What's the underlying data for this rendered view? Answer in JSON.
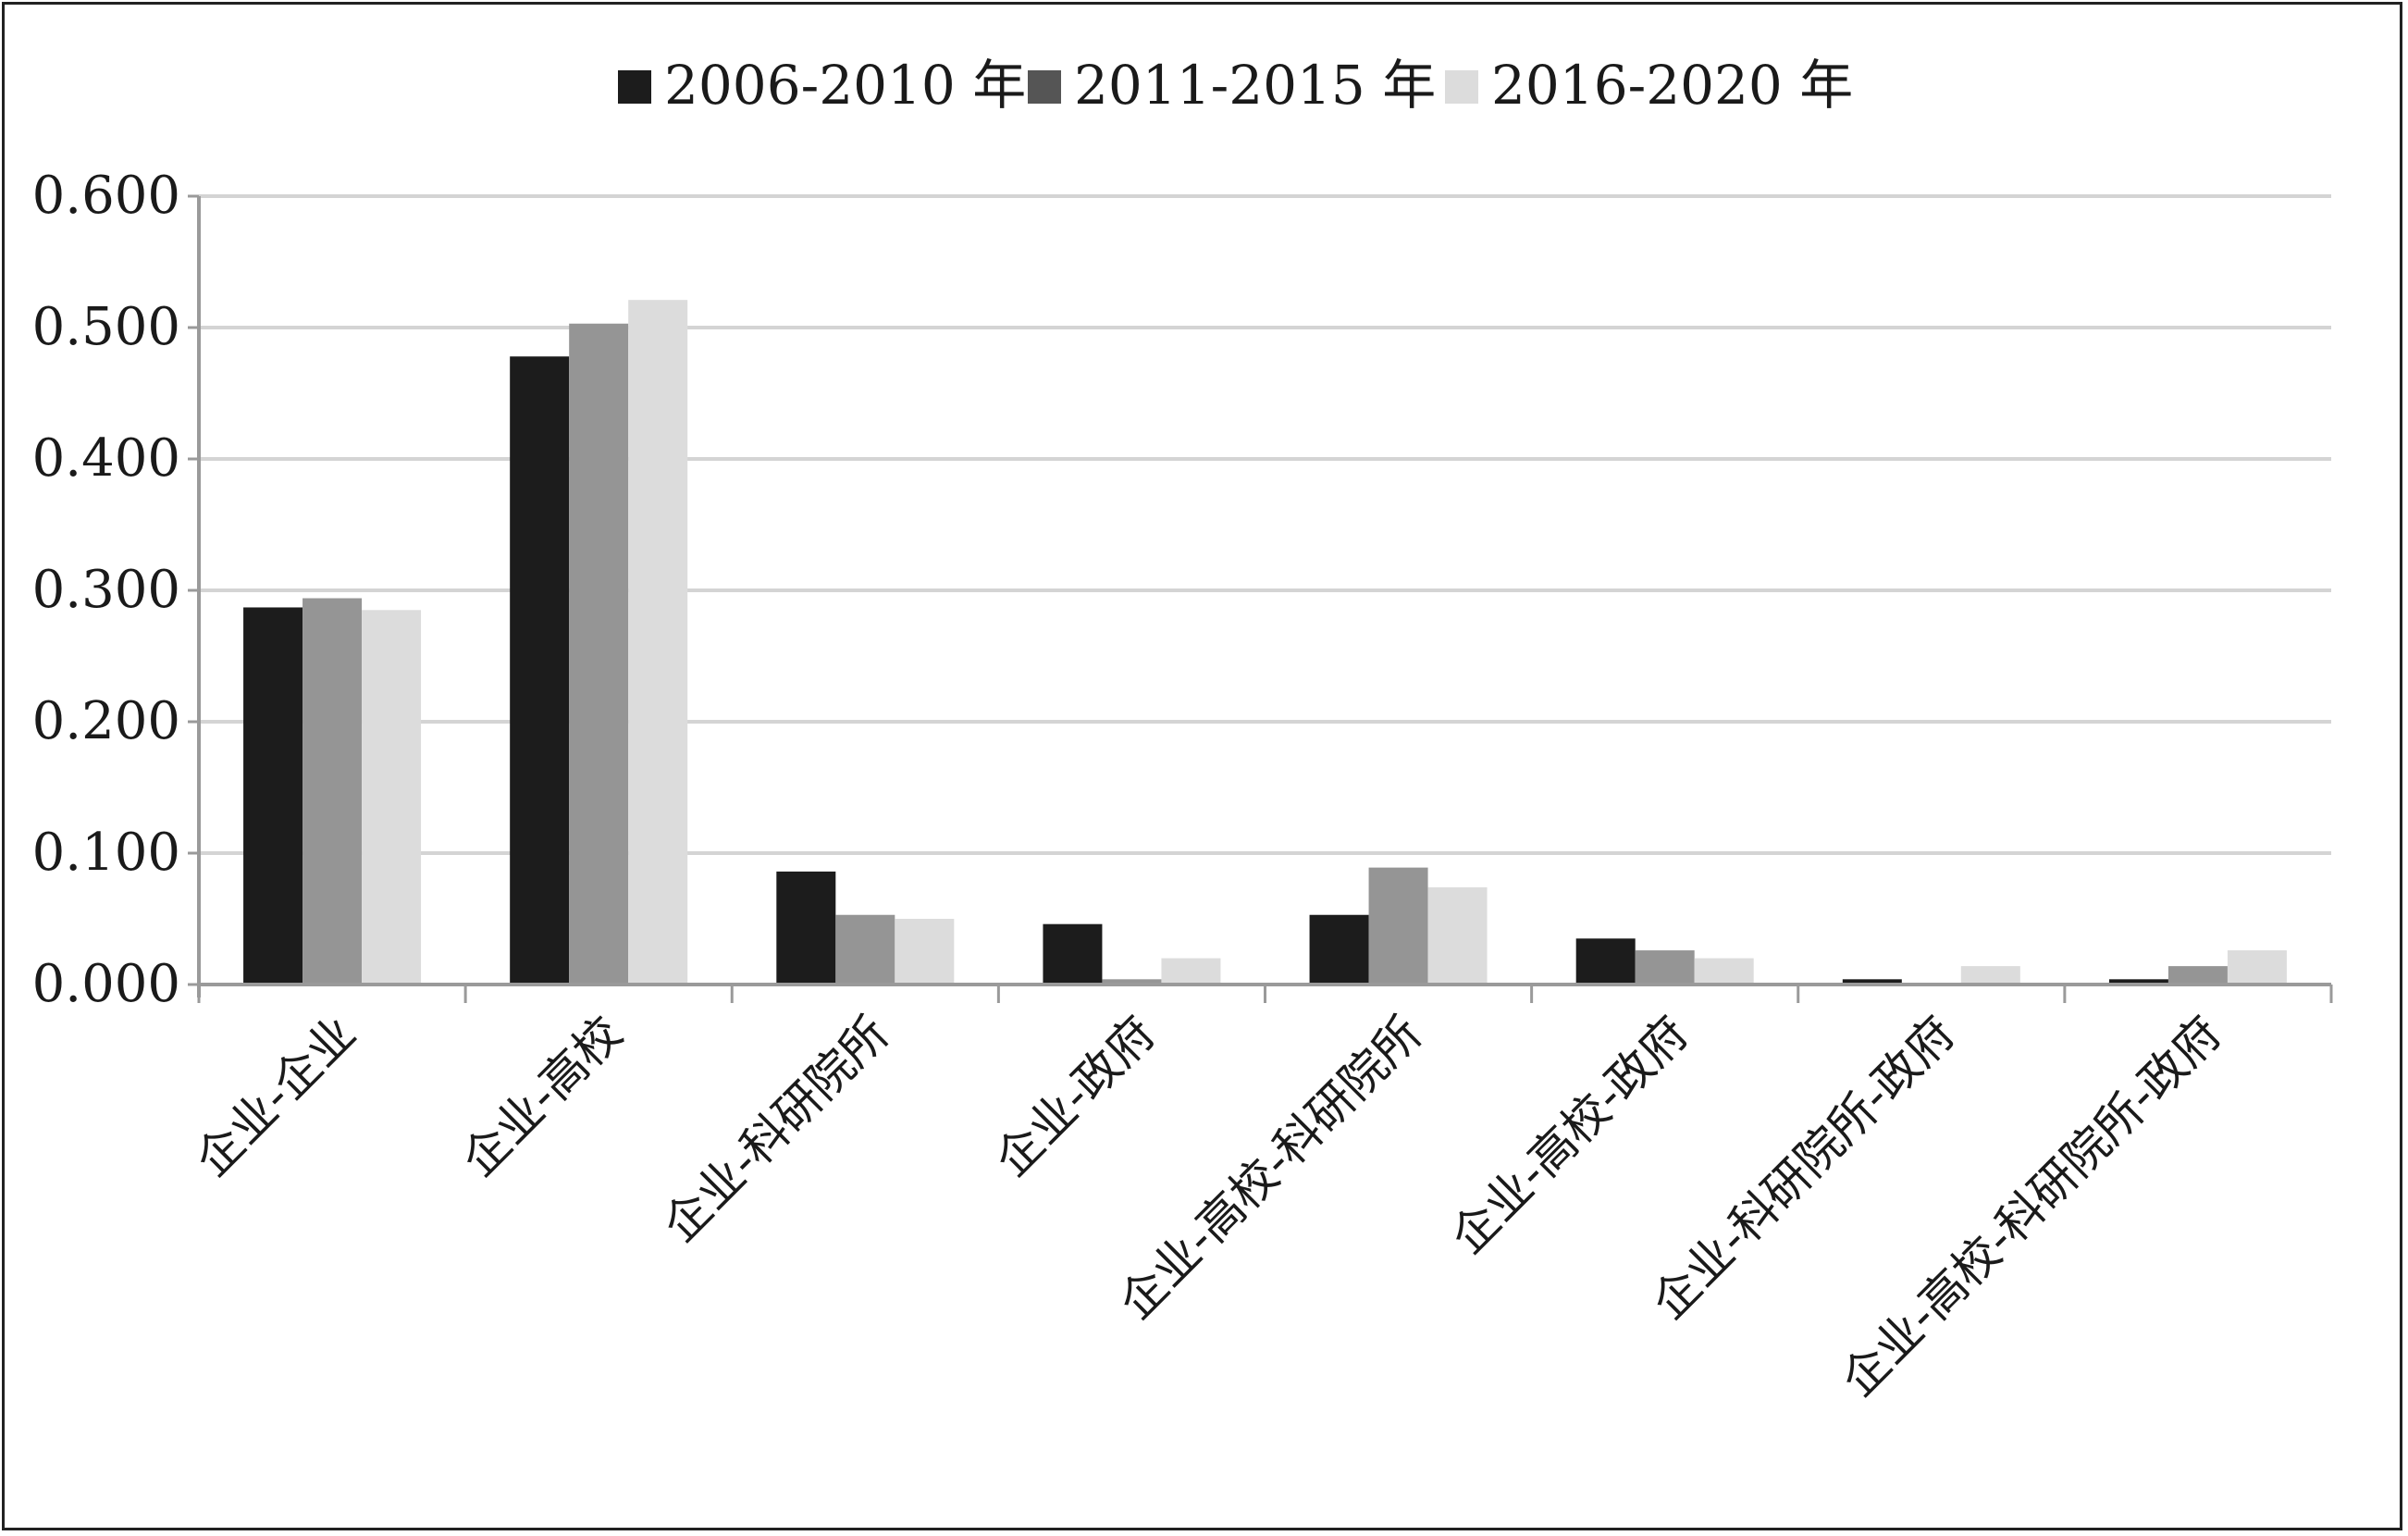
{
  "chart_data": {
    "type": "bar",
    "title": "",
    "xlabel": "",
    "ylabel": "",
    "ylim": [
      0,
      0.6
    ],
    "yticks": [
      "0.000",
      "0.100",
      "0.200",
      "0.300",
      "0.400",
      "0.500",
      "0.600"
    ],
    "grid": true,
    "legend_position": "top-center",
    "categories": [
      "企业-企业",
      "企业-高校",
      "企业-科研院所",
      "企业-政府",
      "企业-高校-科研院所",
      "企业-高校-政府",
      "企业-科研院所-政府",
      "企业-高校-科研院所-政府"
    ],
    "series": [
      {
        "name": "2006-2010 年",
        "legend_color": "#1c1c1c",
        "color": "#1c1c1c",
        "values": [
          0.287,
          0.478,
          0.086,
          0.046,
          0.053,
          0.035,
          0.004,
          0.004
        ]
      },
      {
        "name": "2011-2015 年",
        "legend_color": "#555555",
        "color": "#959595",
        "values": [
          0.294,
          0.503,
          0.053,
          0.004,
          0.089,
          0.026,
          0.0,
          0.014
        ]
      },
      {
        "name": "2016-2020 年",
        "legend_color": "#dcdcdc",
        "color": "#dcdcdc",
        "values": [
          0.285,
          0.521,
          0.05,
          0.02,
          0.074,
          0.02,
          0.014,
          0.026
        ]
      }
    ]
  }
}
